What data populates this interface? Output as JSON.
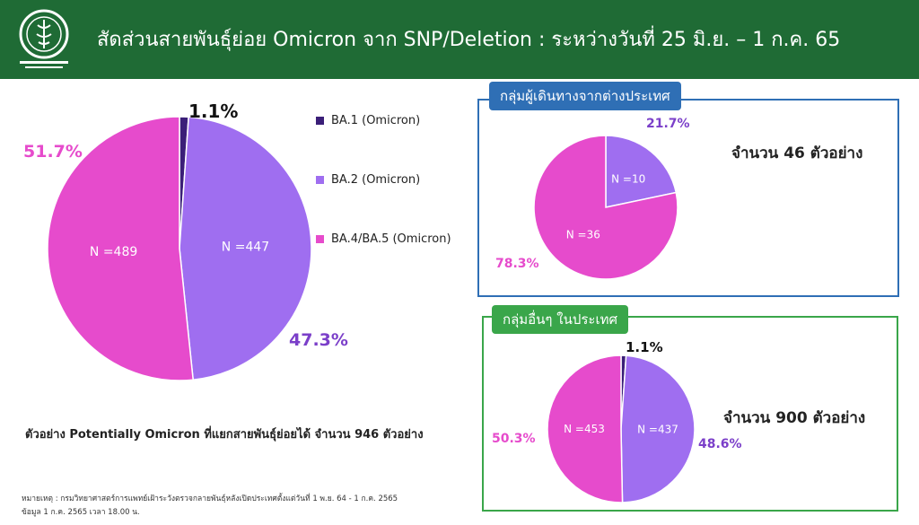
{
  "header": {
    "title": "สัดส่วนสายพันธุ์ย่อย Omicron จาก SNP/Deletion : ระหว่างวันที่ 25 มิ.ย. – 1 ก.ค. 65",
    "logo_icon": "department-seal-icon"
  },
  "colors": {
    "header_bg": "#1f6b35",
    "ba1": "#3b1f78",
    "ba2": "#9f6ef0",
    "ba45": "#e64bcc",
    "box_blue": "#2f6fb5",
    "box_green": "#3aa64a"
  },
  "legend": [
    {
      "label": "BA.1 (Omicron)",
      "color": "#3b1f78"
    },
    {
      "label": "BA.2 (Omicron)",
      "color": "#9f6ef0"
    },
    {
      "label": "BA.4/BA.5 (Omicron)",
      "color": "#e64bcc"
    }
  ],
  "chart_data": [
    {
      "type": "pie",
      "series": [
        {
          "name": "BA.1 (Omicron)",
          "value": 1.1,
          "n_label": ""
        },
        {
          "name": "BA.2 (Omicron)",
          "value": 47.3,
          "n_label": "N =447"
        },
        {
          "name": "BA.4/BA.5 (Omicron)",
          "value": 51.7,
          "n_label": "N =489"
        }
      ],
      "pct_labels": [
        "1.1%",
        "47.3%",
        "51.7%"
      ],
      "legend": "right",
      "summary": "ตัวอย่าง Potentially Omicron ที่แยกสายพันธุ์ย่อยได้ จำนวน 946 ตัวอย่าง"
    },
    {
      "type": "pie",
      "title": "กลุ่มผู้เดินทางจากต่างประเทศ",
      "series": [
        {
          "name": "BA.2 (Omicron)",
          "value": 21.7,
          "n_label": "N =10"
        },
        {
          "name": "BA.4/BA.5 (Omicron)",
          "value": 78.3,
          "n_label": "N =36"
        }
      ],
      "pct_labels": [
        "21.7%",
        "78.3%"
      ],
      "count": "จำนวน 46 ตัวอย่าง"
    },
    {
      "type": "pie",
      "title": "กลุ่มอื่นๆ ในประเทศ",
      "series": [
        {
          "name": "BA.1 (Omicron)",
          "value": 1.1,
          "n_label": ""
        },
        {
          "name": "BA.2 (Omicron)",
          "value": 48.6,
          "n_label": "N =437"
        },
        {
          "name": "BA.4/BA.5 (Omicron)",
          "value": 50.3,
          "n_label": "N =453"
        }
      ],
      "pct_labels": [
        "1.1%",
        "48.6%",
        "50.3%"
      ],
      "count": "จำนวน 900 ตัวอย่าง"
    }
  ],
  "footer": {
    "note": "หมายเหตุ : กรมวิทยาศาสตร์การแพทย์เฝ้าระวังตรวจกลายพันธุ์หลังเปิดประเทศตั้งแต่วันที่ 1 พ.ย. 64 - 1 ก.ค. 2565",
    "data_as_of": "ข้อมูล 1 ก.ค. 2565 เวลา 18.00 น."
  }
}
